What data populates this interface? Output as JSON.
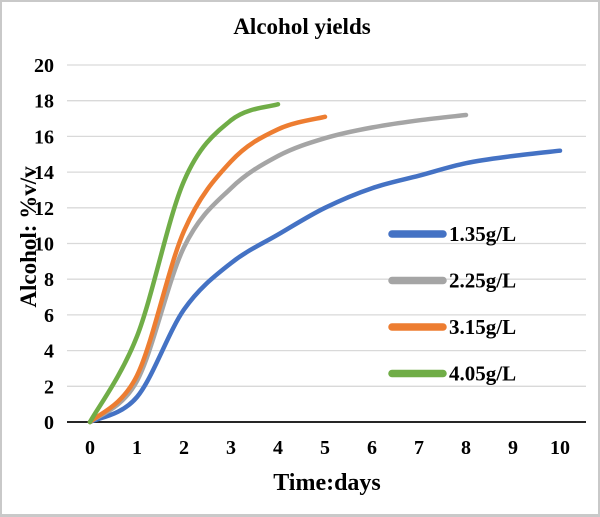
{
  "chart_data": {
    "type": "line",
    "title": "Alcohol yields",
    "xlabel": "Time:days",
    "ylabel": "Alcohol: %v/v",
    "xlim": [
      0,
      10
    ],
    "ylim": [
      0,
      20
    ],
    "x_ticks": [
      0,
      1,
      2,
      3,
      4,
      5,
      6,
      7,
      8,
      9,
      10
    ],
    "y_ticks": [
      0,
      2,
      4,
      6,
      8,
      10,
      12,
      14,
      16,
      18,
      20
    ],
    "grid": "horizontal",
    "grid_color": "#d9d9d9",
    "axis_line_color": "#262626",
    "legend_position": "middle-right",
    "series": [
      {
        "name": "1.35g/L",
        "color": "#4472C4",
        "x": [
          0,
          1,
          2,
          3,
          4,
          5,
          6,
          7,
          8,
          9,
          10
        ],
        "values": [
          0,
          1.4,
          6.3,
          8.9,
          10.5,
          12.0,
          13.1,
          13.8,
          14.5,
          14.9,
          15.2
        ]
      },
      {
        "name": "2.25g/L",
        "color": "#A5A5A5",
        "x": [
          0,
          1,
          2,
          3,
          4,
          5,
          6,
          7,
          8
        ],
        "values": [
          0,
          2.3,
          9.8,
          13.1,
          14.9,
          15.9,
          16.5,
          16.9,
          17.2
        ]
      },
      {
        "name": "3.15g/L",
        "color": "#ED7D31",
        "x": [
          0,
          1,
          2,
          3,
          4,
          5
        ],
        "values": [
          0,
          2.6,
          10.7,
          14.6,
          16.4,
          17.1
        ]
      },
      {
        "name": "4.05g/L",
        "color": "#70AD47",
        "x": [
          0,
          1,
          2,
          3,
          4
        ],
        "values": [
          0,
          4.8,
          13.5,
          16.9,
          17.8
        ]
      }
    ]
  }
}
